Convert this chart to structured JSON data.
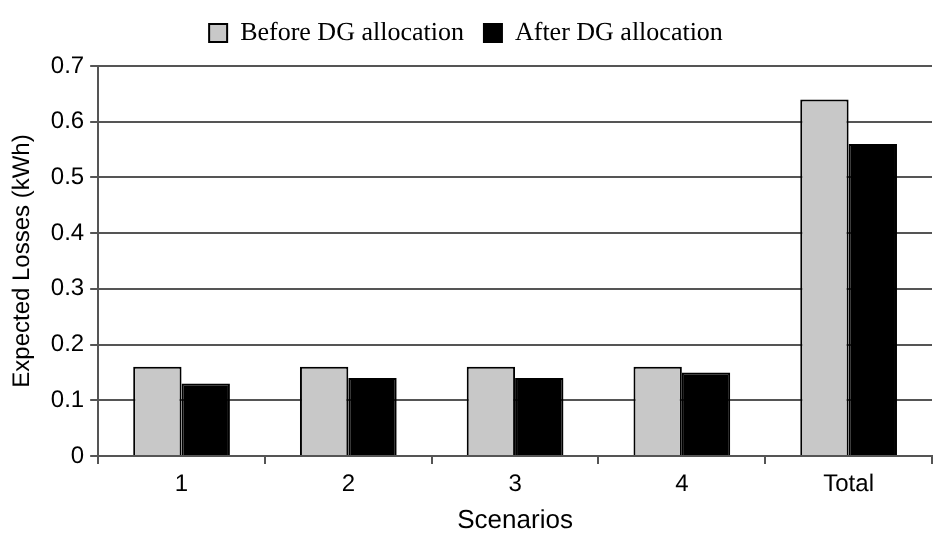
{
  "chart_data": {
    "type": "bar",
    "xlabel": "Scenarios",
    "ylabel": "Expected Losses (kWh)",
    "categories": [
      "1",
      "2",
      "3",
      "4",
      "Total"
    ],
    "series": [
      {
        "name": "Before DG allocation",
        "color": "#c8c8c8",
        "values": [
          0.16,
          0.16,
          0.16,
          0.16,
          0.64
        ]
      },
      {
        "name": "After DG allocation",
        "color": "#000000",
        "values": [
          0.13,
          0.14,
          0.14,
          0.15,
          0.56
        ]
      }
    ],
    "ylim": [
      0,
      0.7
    ],
    "yticks": [
      0,
      0.1,
      0.2,
      0.3,
      0.4,
      0.5,
      0.6,
      0.7
    ],
    "grid": "y",
    "legend": "top"
  }
}
